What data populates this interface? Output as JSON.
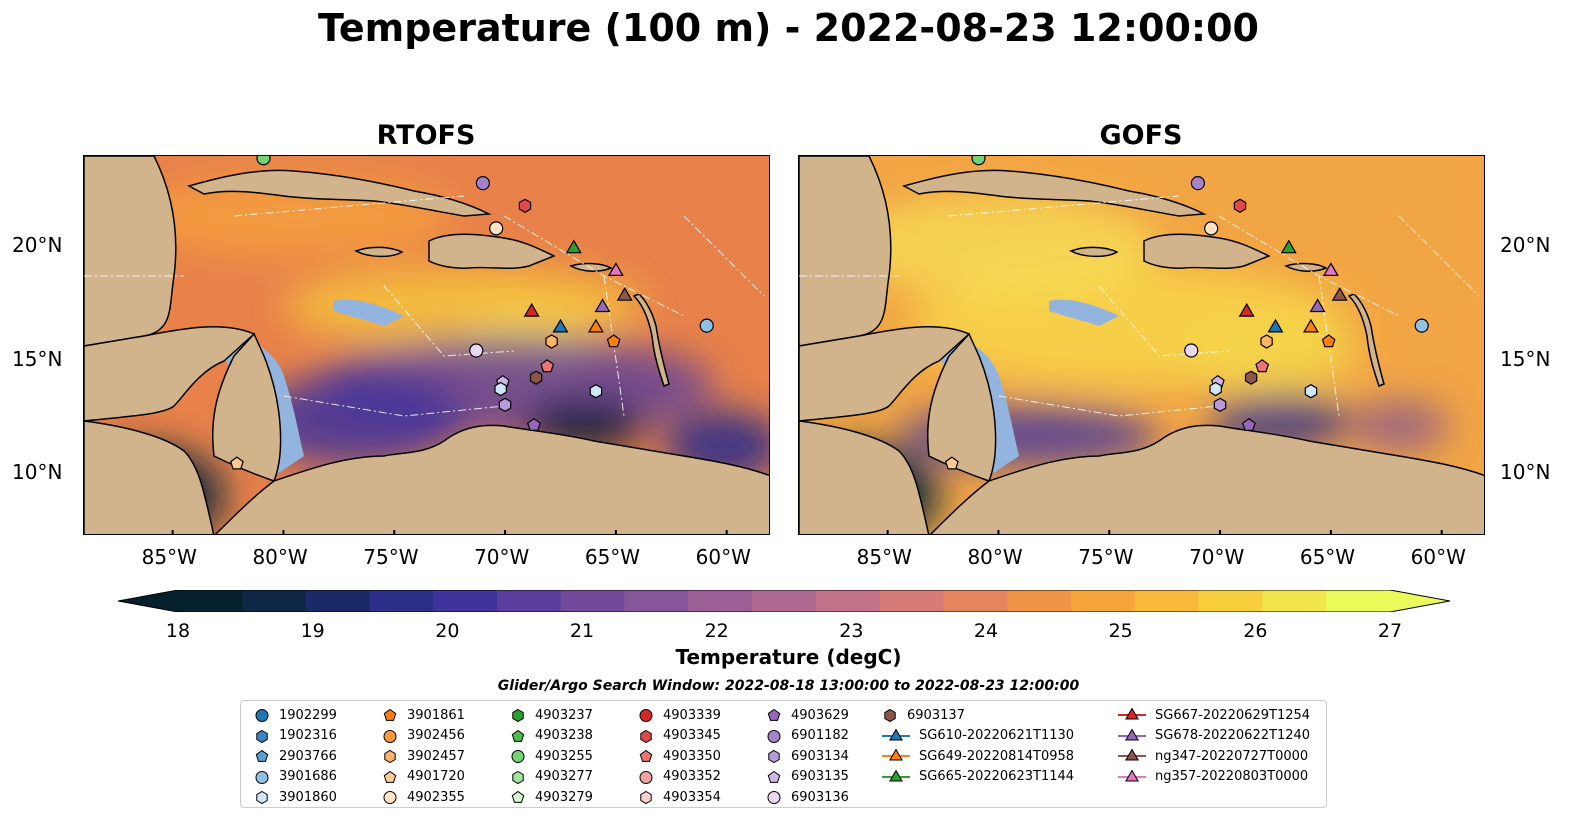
{
  "title": "Temperature (100 m) - 2022-08-23 12:00:00",
  "panels": [
    {
      "title": "RTOFS"
    },
    {
      "title": "GOFS"
    }
  ],
  "lon_ticks": [
    "85°W",
    "80°W",
    "75°W",
    "70°W",
    "65°W",
    "60°W"
  ],
  "lat_ticks": [
    "20°N",
    "15°N",
    "10°N"
  ],
  "colorbar": {
    "label": "Temperature (degC)",
    "min": 18,
    "max": 27,
    "ticks": [
      "18",
      "19",
      "20",
      "21",
      "22",
      "23",
      "24",
      "25",
      "26",
      "27"
    ],
    "extend": "both",
    "colors": [
      "#06202e",
      "#0f2746",
      "#1a2a66",
      "#2b2f89",
      "#40339c",
      "#5a3e9e",
      "#714a9c",
      "#87559a",
      "#9c6097",
      "#b06a92",
      "#c4728a",
      "#d67b78",
      "#e6865f",
      "#f09448",
      "#f6a53b",
      "#f8b93a",
      "#f7cf3e",
      "#f3e54c",
      "#e8fb5a"
    ]
  },
  "legend": {
    "title": "Glider/Argo Search Window: 2022-08-18 13:00:00 to 2022-08-23 12:00:00",
    "columns": [
      [
        {
          "label": "1902299",
          "marker": "circle",
          "color": "#1f77b4"
        },
        {
          "label": "1902316",
          "marker": "hexagon",
          "color": "#3d86c6"
        },
        {
          "label": "2903766",
          "marker": "pentagon",
          "color": "#5a9fd4"
        },
        {
          "label": "3901686",
          "marker": "circle",
          "color": "#8fc0e6"
        },
        {
          "label": "3901860",
          "marker": "hexagon",
          "color": "#cfe6f7"
        }
      ],
      [
        {
          "label": "3901861",
          "marker": "pentagon",
          "color": "#ff7f0e"
        },
        {
          "label": "3902456",
          "marker": "circle",
          "color": "#ff9a3c"
        },
        {
          "label": "3902457",
          "marker": "hexagon",
          "color": "#ffb366"
        },
        {
          "label": "4901720",
          "marker": "pentagon",
          "color": "#ffca8f"
        },
        {
          "label": "4902355",
          "marker": "circle",
          "color": "#ffe3c2"
        }
      ],
      [
        {
          "label": "4903237",
          "marker": "hexagon",
          "color": "#2ca02c"
        },
        {
          "label": "4903238",
          "marker": "pentagon",
          "color": "#4cba4c"
        },
        {
          "label": "4903255",
          "marker": "circle",
          "color": "#74d174"
        },
        {
          "label": "4903277",
          "marker": "hexagon",
          "color": "#a3e4a0"
        },
        {
          "label": "4903279",
          "marker": "pentagon",
          "color": "#d2f5cf"
        }
      ],
      [
        {
          "label": "4903339",
          "marker": "circle",
          "color": "#d62728"
        },
        {
          "label": "4903345",
          "marker": "hexagon",
          "color": "#e24a4a"
        },
        {
          "label": "4903350",
          "marker": "pentagon",
          "color": "#ec7474"
        },
        {
          "label": "4903352",
          "marker": "circle",
          "color": "#f3a2a2"
        },
        {
          "label": "4903354",
          "marker": "hexagon",
          "color": "#f9d0d0"
        }
      ],
      [
        {
          "label": "4903629",
          "marker": "pentagon",
          "color": "#9467bd"
        },
        {
          "label": "6901182",
          "marker": "circle",
          "color": "#a682cb"
        },
        {
          "label": "6903134",
          "marker": "hexagon",
          "color": "#b99ad8"
        },
        {
          "label": "6903135",
          "marker": "pentagon",
          "color": "#d0b6e6"
        },
        {
          "label": "6903136",
          "marker": "circle",
          "color": "#e8d8f4"
        }
      ],
      [
        {
          "label": "6903137",
          "marker": "hexagon",
          "color": "#8c564b"
        },
        {
          "label": "SG610-20220621T1130",
          "marker": "triangle-line",
          "color": "#1f77b4"
        },
        {
          "label": "SG649-20220814T0958",
          "marker": "triangle-line",
          "color": "#ff7f0e"
        },
        {
          "label": "SG665-20220623T1144",
          "marker": "triangle-line",
          "color": "#2ca02c"
        }
      ],
      [
        {
          "label": "SG667-20220629T1254",
          "marker": "triangle-line",
          "color": "#d62728"
        },
        {
          "label": "SG678-20220622T1240",
          "marker": "triangle-line",
          "color": "#9467bd"
        },
        {
          "label": "ng347-20220727T0000",
          "marker": "triangle-line",
          "color": "#8c564b"
        },
        {
          "label": "ng357-20220803T0000",
          "marker": "triangle-line",
          "color": "#e377c2"
        }
      ]
    ]
  },
  "observations": [
    {
      "lon": -71.0,
      "lat": 22.8,
      "marker": "circle",
      "color": "#a682cb"
    },
    {
      "lon": -69.1,
      "lat": 21.8,
      "marker": "hexagon",
      "color": "#e24a4a"
    },
    {
      "lon": -70.4,
      "lat": 20.8,
      "marker": "circle",
      "color": "#ffe3c2"
    },
    {
      "lon": -66.9,
      "lat": 19.9,
      "marker": "triangle",
      "color": "#2ca02c"
    },
    {
      "lon": -65.0,
      "lat": 18.9,
      "marker": "triangle",
      "color": "#e377c2"
    },
    {
      "lon": -64.6,
      "lat": 17.8,
      "marker": "triangle",
      "color": "#8c564b"
    },
    {
      "lon": -65.6,
      "lat": 17.3,
      "marker": "triangle",
      "color": "#9467bd"
    },
    {
      "lon": -68.8,
      "lat": 17.1,
      "marker": "triangle",
      "color": "#d62728"
    },
    {
      "lon": -67.5,
      "lat": 16.4,
      "marker": "triangle",
      "color": "#1f77b4"
    },
    {
      "lon": -65.9,
      "lat": 16.4,
      "marker": "triangle",
      "color": "#ff7f0e"
    },
    {
      "lon": -65.1,
      "lat": 15.8,
      "marker": "pentagon",
      "color": "#ff7f0e"
    },
    {
      "lon": -67.9,
      "lat": 15.8,
      "marker": "hexagon",
      "color": "#ffb366"
    },
    {
      "lon": -60.9,
      "lat": 16.5,
      "marker": "circle",
      "color": "#8fc0e6"
    },
    {
      "lon": -71.3,
      "lat": 15.4,
      "marker": "circle",
      "color": "#e8d8f4"
    },
    {
      "lon": -68.1,
      "lat": 14.7,
      "marker": "pentagon",
      "color": "#ec7474"
    },
    {
      "lon": -68.6,
      "lat": 14.2,
      "marker": "hexagon",
      "color": "#8c564b"
    },
    {
      "lon": -70.1,
      "lat": 14.0,
      "marker": "pentagon",
      "color": "#d0b6e6"
    },
    {
      "lon": -70.2,
      "lat": 13.7,
      "marker": "hexagon",
      "color": "#cfe6f7"
    },
    {
      "lon": -65.9,
      "lat": 13.6,
      "marker": "hexagon",
      "color": "#cfe6f7"
    },
    {
      "lon": -70.0,
      "lat": 13.0,
      "marker": "hexagon",
      "color": "#b99ad8"
    },
    {
      "lon": -68.7,
      "lat": 12.1,
      "marker": "pentagon",
      "color": "#9467bd"
    },
    {
      "lon": -82.1,
      "lat": 10.4,
      "marker": "pentagon",
      "color": "#ffca8f"
    },
    {
      "lon": -80.9,
      "lat": 23.9,
      "marker": "circle",
      "color": "#74d174"
    }
  ]
}
